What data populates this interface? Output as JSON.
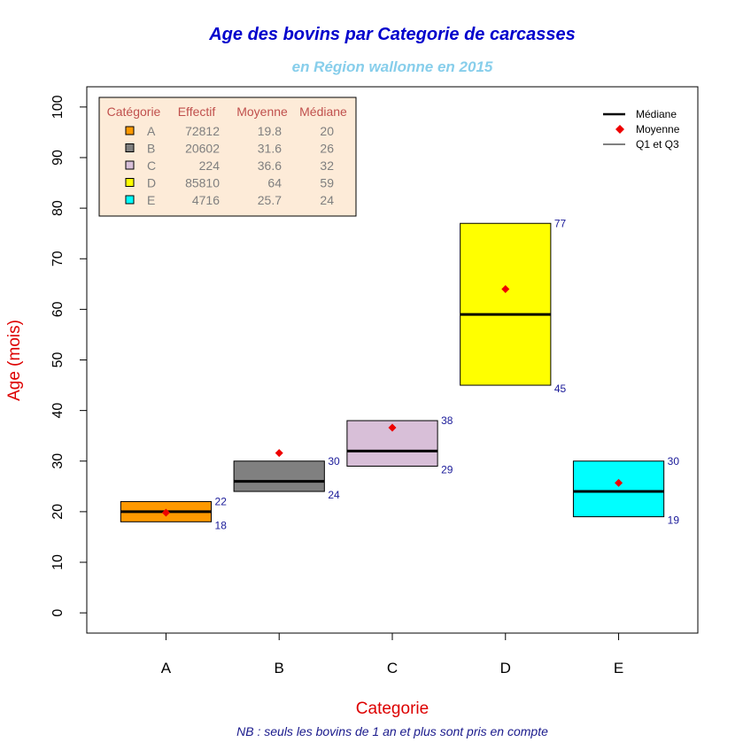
{
  "chart_data": {
    "type": "boxplot",
    "title": "Age des bovins par Categorie de carcasses",
    "subtitle": "en Région wallonne en 2015",
    "xlabel": "Categorie",
    "ylabel": "Age (mois)",
    "footnote": "NB : seuls les bovins de 1 an et plus sont pris en compte",
    "ylim": [
      -4,
      104
    ],
    "yticks": [
      0,
      10,
      20,
      30,
      40,
      50,
      60,
      70,
      80,
      90,
      100
    ],
    "categories": [
      "A",
      "B",
      "C",
      "D",
      "E"
    ],
    "boxes": [
      {
        "cat": "A",
        "q1": 18,
        "q3": 22,
        "median": 20,
        "mean": 19.8,
        "effectif": "72812",
        "moyenne": "19.8",
        "mediane": "20",
        "color": "#ff9900"
      },
      {
        "cat": "B",
        "q1": 24,
        "q3": 30,
        "median": 26,
        "mean": 31.6,
        "effectif": "20602",
        "moyenne": "31.6",
        "mediane": "26",
        "color": "#808080"
      },
      {
        "cat": "C",
        "q1": 29,
        "q3": 38,
        "median": 32,
        "mean": 36.6,
        "effectif": "224",
        "moyenne": "36.6",
        "mediane": "32",
        "color": "#d8bfd8"
      },
      {
        "cat": "D",
        "q1": 45,
        "q3": 77,
        "median": 59,
        "mean": 64,
        "effectif": "85810",
        "moyenne": "64",
        "mediane": "59",
        "color": "#ffff00"
      },
      {
        "cat": "E",
        "q1": 19,
        "q3": 30,
        "median": 24,
        "mean": 25.7,
        "effectif": "4716",
        "moyenne": "25.7",
        "mediane": "24",
        "color": "#00ffff"
      }
    ],
    "stats_table": {
      "headers": [
        "Catégorie",
        "Effectif",
        "Moyenne",
        "Médiane"
      ],
      "background": "#fdebd8",
      "header_color": "#c0504d",
      "text_color": "#7f7f7f"
    },
    "legend": {
      "position": "top-right",
      "items": [
        {
          "label": "Médiane",
          "symbol": "thick-line"
        },
        {
          "label": "Moyenne",
          "symbol": "diamond"
        },
        {
          "label": "Q1 et Q3",
          "symbol": "thin-line"
        }
      ]
    },
    "colors": {
      "title": "#0000cc",
      "subtitle": "#87ceeb",
      "axis_title": "#dd0000",
      "footnote": "#1a1a8c",
      "quartile_label": "#1a1a99",
      "mean_marker": "#ee0000"
    }
  }
}
